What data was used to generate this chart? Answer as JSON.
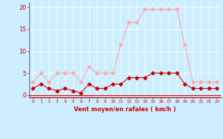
{
  "x": [
    0,
    1,
    2,
    3,
    4,
    5,
    6,
    7,
    8,
    9,
    10,
    11,
    12,
    13,
    14,
    15,
    16,
    17,
    18,
    19,
    20,
    21,
    22,
    23
  ],
  "avg_wind": [
    1.5,
    2.5,
    1.5,
    1.0,
    1.5,
    1.0,
    0.5,
    2.5,
    1.5,
    1.5,
    2.5,
    2.5,
    4.0,
    4.0,
    4.0,
    5.0,
    5.0,
    5.0,
    5.0,
    2.5,
    1.5,
    1.5,
    1.5,
    1.5
  ],
  "gust_wind": [
    3.0,
    5.0,
    3.0,
    5.0,
    5.0,
    5.0,
    3.0,
    6.5,
    5.0,
    5.0,
    5.0,
    11.5,
    16.5,
    16.5,
    19.5,
    19.5,
    19.5,
    19.5,
    19.5,
    11.5,
    3.0,
    3.0,
    3.0,
    3.0
  ],
  "avg_color": "#cc0000",
  "gust_color": "#ffaaaa",
  "bg_color": "#cceeff",
  "grid_color": "#ffffff",
  "xlabel": "Vent moyen/en rafales ( km/h )",
  "xlabel_color": "#cc0000",
  "tick_color": "#cc0000",
  "ylim": [
    -0.5,
    21
  ],
  "yticks": [
    0,
    5,
    10,
    15,
    20
  ],
  "markersize": 2.5,
  "linewidth": 0.8
}
